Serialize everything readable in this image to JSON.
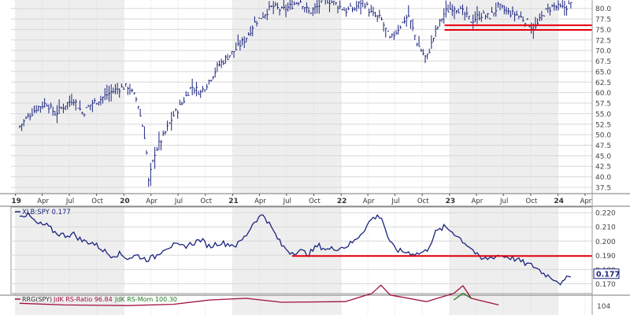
{
  "chart_data": [
    {
      "type": "line",
      "panel": "price",
      "style": "ohlc-bars",
      "x_ticks": [
        "19",
        "Apr",
        "Jul",
        "Oct",
        "20",
        "Apr",
        "Jul",
        "Oct",
        "21",
        "Apr",
        "Jul",
        "Oct",
        "22",
        "Apr",
        "Jul",
        "Oct",
        "23",
        "Apr",
        "Jul",
        "Oct",
        "24",
        "Apr"
      ],
      "x_bold_ticks": [
        "19",
        "20",
        "21",
        "22",
        "23",
        "24"
      ],
      "ylim": [
        36,
        82
      ],
      "y_ticks": [
        "37.5",
        "40.0",
        "42.5",
        "45.0",
        "47.5",
        "50.0",
        "52.5",
        "55.0",
        "57.5",
        "60.0",
        "62.5",
        "65.0",
        "67.5",
        "70.0",
        "72.5",
        "75.0",
        "77.5",
        "80.0"
      ],
      "x": [
        "2019-01",
        "2019-02",
        "2019-03",
        "2019-04",
        "2019-05",
        "2019-06",
        "2019-07",
        "2019-08",
        "2019-09",
        "2019-10",
        "2019-11",
        "2019-12",
        "2020-01",
        "2020-02",
        "2020-03",
        "2020-03-23",
        "2020-04",
        "2020-05",
        "2020-06",
        "2020-07",
        "2020-08",
        "2020-09",
        "2020-10",
        "2020-11",
        "2020-12",
        "2021-01",
        "2021-02",
        "2021-03",
        "2021-04",
        "2021-05",
        "2021-06",
        "2021-07",
        "2021-08",
        "2021-09",
        "2021-10",
        "2021-11",
        "2021-12",
        "2022-01",
        "2022-02",
        "2022-03",
        "2022-04",
        "2022-05",
        "2022-06",
        "2022-07",
        "2022-08",
        "2022-09",
        "2022-10",
        "2022-11",
        "2022-12",
        "2023-01",
        "2023-02",
        "2023-03",
        "2023-04",
        "2023-05",
        "2023-06",
        "2023-07",
        "2023-08",
        "2023-09",
        "2023-10",
        "2023-11",
        "2023-12",
        "2024-01",
        "2024-02"
      ],
      "values": [
        52.0,
        54.5,
        56.5,
        57.5,
        55.0,
        57.0,
        58.5,
        55.0,
        57.5,
        58.5,
        60.0,
        61.0,
        61.5,
        58.0,
        48.0,
        38.5,
        46.0,
        50.0,
        54.5,
        57.5,
        61.5,
        60.0,
        63.0,
        66.5,
        68.5,
        70.5,
        73.0,
        76.5,
        78.5,
        80.5,
        79.5,
        80.5,
        82.0,
        79.0,
        80.5,
        82.0,
        81.0,
        79.5,
        80.0,
        82.0,
        78.5,
        77.5,
        72.5,
        75.5,
        78.5,
        71.5,
        68.0,
        74.5,
        79.0,
        80.5,
        79.0,
        77.0,
        78.5,
        78.0,
        80.5,
        79.0,
        78.5,
        77.0,
        75.0,
        79.0,
        80.5,
        80.0,
        81.0
      ],
      "annotations": [
        {
          "type": "support-lines",
          "y": [
            76.0,
            74.9
          ],
          "x_from": "2022-12",
          "x_to": "2024-04",
          "color": "#e8000b"
        }
      ]
    },
    {
      "type": "line",
      "panel": "ratio",
      "legend": "XLB:SPY 0.177",
      "ylim": [
        0.163,
        0.224
      ],
      "y_ticks": [
        "0.170",
        "0.180",
        "0.190",
        "0.200",
        "0.210",
        "0.220"
      ],
      "last_value": "0.177",
      "x": [
        "2019-01",
        "2019-02",
        "2019-03",
        "2019-04",
        "2019-05",
        "2019-06",
        "2019-07",
        "2019-08",
        "2019-09",
        "2019-10",
        "2019-11",
        "2019-12",
        "2020-01",
        "2020-02",
        "2020-03",
        "2020-04",
        "2020-05",
        "2020-06",
        "2020-07",
        "2020-08",
        "2020-09",
        "2020-10",
        "2020-11",
        "2020-12",
        "2021-01",
        "2021-02",
        "2021-03",
        "2021-04",
        "2021-05",
        "2021-06",
        "2021-07",
        "2021-08",
        "2021-09",
        "2021-10",
        "2021-11",
        "2021-12",
        "2022-01",
        "2022-02",
        "2022-03",
        "2022-04",
        "2022-05",
        "2022-06",
        "2022-07",
        "2022-08",
        "2022-09",
        "2022-10",
        "2022-11",
        "2022-12",
        "2023-01",
        "2023-02",
        "2023-03",
        "2023-04",
        "2023-05",
        "2023-06",
        "2023-07",
        "2023-08",
        "2023-09",
        "2023-10",
        "2023-11",
        "2023-12",
        "2024-01",
        "2024-02"
      ],
      "values": [
        0.219,
        0.218,
        0.212,
        0.211,
        0.206,
        0.204,
        0.205,
        0.2,
        0.199,
        0.195,
        0.19,
        0.191,
        0.188,
        0.19,
        0.187,
        0.189,
        0.195,
        0.197,
        0.196,
        0.198,
        0.201,
        0.196,
        0.199,
        0.198,
        0.197,
        0.204,
        0.214,
        0.219,
        0.208,
        0.197,
        0.192,
        0.193,
        0.191,
        0.197,
        0.194,
        0.195,
        0.196,
        0.2,
        0.207,
        0.216,
        0.218,
        0.198,
        0.193,
        0.192,
        0.191,
        0.193,
        0.206,
        0.21,
        0.206,
        0.2,
        0.195,
        0.187,
        0.188,
        0.19,
        0.189,
        0.187,
        0.184,
        0.182,
        0.177,
        0.174,
        0.17,
        0.177
      ],
      "annotations": [
        {
          "type": "horizontal-line",
          "y": 0.1895,
          "x_from": "2021-07",
          "x_to": "2024-04",
          "color": "#e8000b"
        }
      ]
    },
    {
      "type": "line",
      "panel": "rrg",
      "legend": [
        "RRG(SPY)",
        "JdK RS-Ratio 96.84",
        "JdK RS-Mom 100.30"
      ],
      "y_ticks": [
        "104"
      ],
      "ylim": [
        96,
        106
      ],
      "series": [
        {
          "name": "JdK RS-Ratio 96.84",
          "color": "#a0103a",
          "x": [
            "2019-01",
            "2019-06",
            "2020-01",
            "2020-06",
            "2020-10",
            "2021-02",
            "2021-06",
            "2022-01",
            "2022-04",
            "2022-05",
            "2022-06",
            "2022-10",
            "2023-01",
            "2023-02",
            "2023-03",
            "2023-06"
          ],
          "values": [
            99.5,
            99.0,
            98.8,
            99.2,
            100.5,
            101.0,
            99.8,
            100.0,
            102.5,
            105.0,
            102.0,
            100.0,
            102.5,
            104.8,
            101.0,
            99.0
          ]
        },
        {
          "name": "JdK RS-Mom 100.30",
          "color": "#1f7a1f",
          "x": [
            "2023-01",
            "2023-02",
            "2023-03"
          ],
          "values": [
            100.5,
            102.5,
            101.0
          ]
        }
      ]
    }
  ]
}
